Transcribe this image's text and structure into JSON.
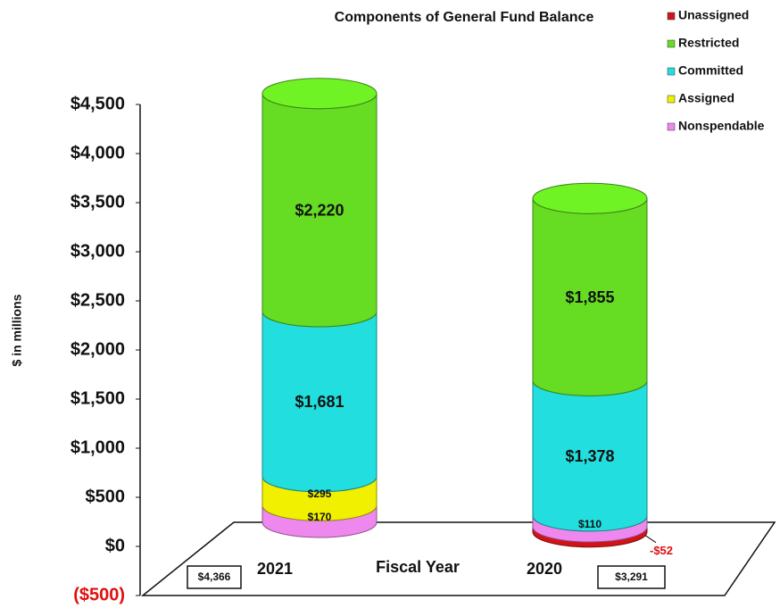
{
  "chart_data": {
    "type": "stacked-cylinder",
    "title": "Components of General Fund Balance",
    "x_label": "Fiscal Year",
    "y_label": "$ in millions",
    "categories": [
      "2021",
      "2020"
    ],
    "series": [
      {
        "name": "Unassigned",
        "color": "#d41414",
        "values": [
          null,
          -52
        ],
        "value_labels": [
          null,
          "-$52"
        ]
      },
      {
        "name": "Restricted",
        "color": "#66dd22",
        "values": [
          2220,
          1855
        ],
        "value_labels": [
          "$2,220",
          "$1,855"
        ]
      },
      {
        "name": "Committed",
        "color": "#22dede",
        "values": [
          1681,
          1378
        ],
        "value_labels": [
          "$1,681",
          "$1,378"
        ]
      },
      {
        "name": "Assigned",
        "color": "#f0f000",
        "values": [
          295,
          null
        ],
        "value_labels": [
          "$295",
          null
        ]
      },
      {
        "name": "Nonspendable",
        "color": "#ee88ee",
        "values": [
          170,
          110
        ],
        "value_labels": [
          "$170",
          "$110"
        ]
      }
    ],
    "totals": [
      4366,
      3291
    ],
    "total_labels": [
      "$4,366",
      "$3,291"
    ],
    "ylim": [
      -500,
      4500
    ],
    "yticks": [
      {
        "value": -500,
        "label": "($500)"
      },
      {
        "value": 0,
        "label": "$0"
      },
      {
        "value": 500,
        "label": "$500"
      },
      {
        "value": 1000,
        "label": "$1,000"
      },
      {
        "value": 1500,
        "label": "$1,500"
      },
      {
        "value": 2000,
        "label": "$2,000"
      },
      {
        "value": 2500,
        "label": "$2,500"
      },
      {
        "value": 3000,
        "label": "$3,000"
      },
      {
        "value": 3500,
        "label": "$3,500"
      },
      {
        "value": 4000,
        "label": "$4,000"
      },
      {
        "value": 4500,
        "label": "$4,500"
      }
    ],
    "grid": false,
    "legend": "top-right"
  }
}
